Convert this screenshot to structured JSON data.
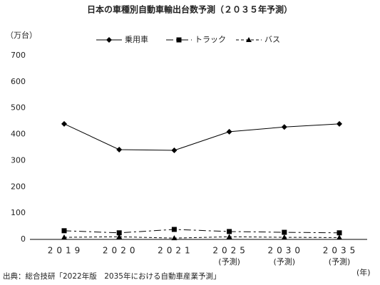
{
  "chart_data": {
    "type": "line",
    "title": "日本の車種別自動車輸出台数予測（２０３５年予測）",
    "y_label": "（万台）",
    "x_label": "(年)",
    "source": "出典：総合技研「2022年版　2035年における自動車産業予測」",
    "categories": [
      "2019",
      "2020",
      "2021",
      "2025",
      "2030",
      "2035"
    ],
    "category_notes": [
      null,
      null,
      null,
      "(予測)",
      "(予測)",
      "(予測)"
    ],
    "series": [
      {
        "name": "乗用車",
        "color": "#000000",
        "marker": "diamond",
        "line_style": "solid",
        "values": [
          440,
          342,
          339,
          410,
          428,
          440
        ]
      },
      {
        "name": "トラック",
        "color": "#000000",
        "marker": "square",
        "line_style": "dashdot",
        "values": [
          33,
          25,
          38,
          30,
          27,
          25
        ]
      },
      {
        "name": "バス",
        "color": "#000000",
        "marker": "triangle",
        "line_style": "dashed",
        "values": [
          8,
          10,
          5,
          10,
          8,
          7
        ]
      }
    ],
    "ylim": [
      0,
      700
    ],
    "yticks": [
      0,
      100,
      200,
      300,
      400,
      500,
      600,
      700
    ],
    "grid": false
  }
}
